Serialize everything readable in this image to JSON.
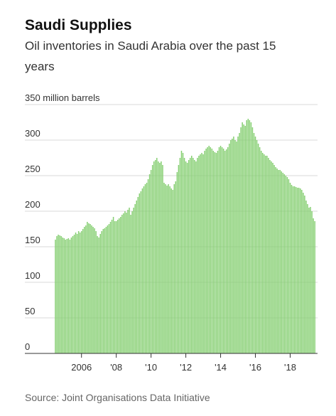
{
  "chart_data": {
    "type": "bar",
    "title": "Saudi Supplies",
    "subtitle": [
      "Oil inventories in Saudi Arabia over the past 15",
      "years"
    ],
    "source": "Source: Joint Organisations Data Initiative",
    "color": "#86cf72",
    "ylim": [
      0,
      350
    ],
    "yticks": [
      0,
      50,
      100,
      150,
      200,
      250,
      300,
      {
        "value": 350,
        "label": "350 million barrels"
      }
    ],
    "grid": true,
    "categories": [
      null,
      null,
      null,
      null,
      null,
      null,
      null,
      null,
      null,
      null,
      null,
      null,
      null,
      null,
      null,
      null,
      null,
      null,
      "2006",
      null,
      null,
      null,
      null,
      null,
      null,
      null,
      null,
      null,
      null,
      null,
      null,
      null,
      null,
      null,
      null,
      null,
      null,
      null,
      null,
      null,
      null,
      null,
      "'08",
      null,
      null,
      null,
      null,
      null,
      null,
      null,
      null,
      null,
      null,
      null,
      null,
      null,
      null,
      null,
      null,
      null,
      null,
      null,
      null,
      null,
      null,
      null,
      "'10",
      null,
      null,
      null,
      null,
      null,
      null,
      null,
      null,
      null,
      null,
      null,
      null,
      null,
      null,
      null,
      null,
      null,
      null,
      null,
      null,
      null,
      null,
      null,
      "'12",
      null,
      null,
      null,
      null,
      null,
      null,
      null,
      null,
      null,
      null,
      null,
      null,
      null,
      null,
      null,
      null,
      null,
      null,
      null,
      null,
      null,
      null,
      null,
      "'14",
      null,
      null,
      null,
      null,
      null,
      null,
      null,
      null,
      null,
      null,
      null,
      null,
      null,
      null,
      null,
      null,
      null,
      null,
      null,
      null,
      null,
      null,
      null,
      "'16",
      null,
      null,
      null,
      null,
      null,
      null,
      null,
      null,
      null,
      null,
      null,
      null,
      null,
      null,
      null,
      null,
      null,
      null,
      null,
      null,
      null,
      null,
      null,
      "'18",
      null,
      null,
      null,
      null,
      null,
      null,
      null,
      null,
      null,
      null,
      null,
      null,
      null,
      null,
      null,
      null,
      null
    ],
    "values": [
      160,
      165,
      167,
      166,
      165,
      163,
      162,
      160,
      161,
      162,
      160,
      163,
      165,
      167,
      170,
      168,
      172,
      170,
      172,
      175,
      178,
      180,
      185,
      183,
      182,
      180,
      178,
      176,
      172,
      165,
      163,
      168,
      172,
      175,
      176,
      178,
      180,
      182,
      185,
      188,
      192,
      186,
      186,
      188,
      190,
      192,
      195,
      197,
      200,
      198,
      202,
      205,
      195,
      200,
      205,
      210,
      215,
      220,
      225,
      228,
      232,
      235,
      238,
      240,
      245,
      252,
      258,
      265,
      270,
      272,
      275,
      270,
      268,
      270,
      265,
      240,
      238,
      236,
      238,
      235,
      232,
      230,
      238,
      242,
      255,
      265,
      275,
      285,
      282,
      275,
      270,
      268,
      272,
      275,
      278,
      275,
      272,
      270,
      275,
      278,
      280,
      282,
      280,
      285,
      288,
      290,
      292,
      290,
      288,
      285,
      283,
      282,
      285,
      290,
      292,
      290,
      288,
      285,
      287,
      290,
      295,
      300,
      302,
      305,
      300,
      298,
      305,
      310,
      318,
      325,
      322,
      320,
      328,
      330,
      328,
      325,
      318,
      310,
      305,
      300,
      295,
      290,
      285,
      282,
      280,
      278,
      278,
      275,
      272,
      270,
      268,
      265,
      262,
      260,
      258,
      258,
      256,
      254,
      252,
      250,
      248,
      245,
      240,
      237,
      235,
      235,
      234,
      233,
      233,
      232,
      230,
      226,
      222,
      215,
      210,
      205,
      206,
      200,
      190,
      186
    ]
  }
}
